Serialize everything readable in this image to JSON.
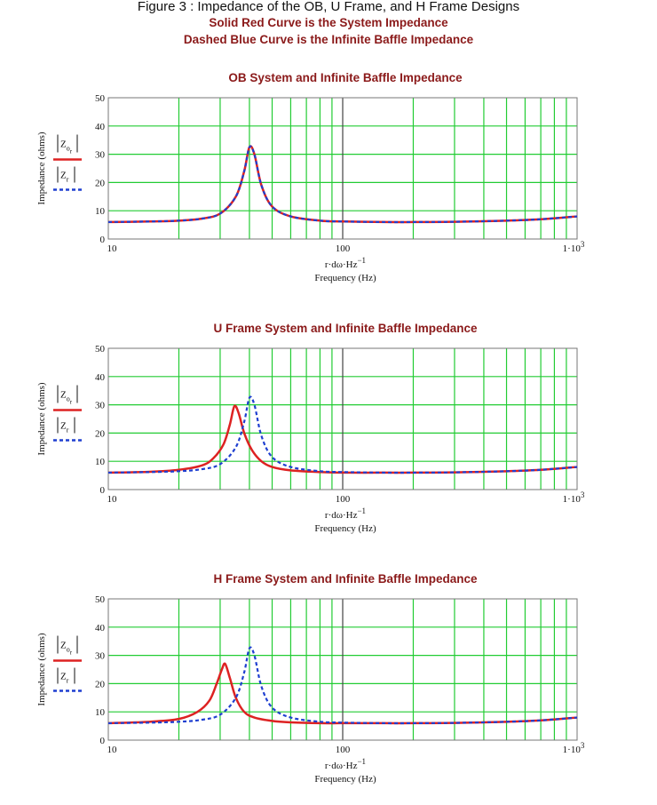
{
  "figure": {
    "title": "Figure 3 : Impedance of the OB, U Frame, and H Frame Designs",
    "subtitle_1": "Solid Red Curve is the System Impedance",
    "subtitle_2": "Dashed Blue Curve is the Infinite Baffle Impedance"
  },
  "colors": {
    "system": "#dd2222",
    "baffle": "#1f3fd0",
    "grid": "#22cc33",
    "frame": "#777777",
    "title": "#8b1a1a"
  },
  "chart_data": [
    {
      "type": "line",
      "title": "OB System and Infinite Baffle Impedance",
      "xlabel": "Frequency (Hz)",
      "xlabel_expr": "r·dω·Hz",
      "xlabel_exp": "−1",
      "ylabel": "Impedance (ohms)",
      "x_scale": "log",
      "xlim": [
        10,
        1000
      ],
      "ylim": [
        0,
        50
      ],
      "grid": true,
      "x_ticks": [
        "10",
        "100",
        "1·10"
      ],
      "x_tick_exp": "3",
      "y_ticks": [
        0,
        10,
        20,
        30,
        40,
        50
      ],
      "legend": {
        "placement": "left",
        "entries": [
          "|Zor|",
          "|Zr|"
        ]
      },
      "series": [
        {
          "style": "solid-red",
          "x": [
            10,
            15,
            20,
            25,
            30,
            35,
            38,
            40,
            42,
            45,
            50,
            60,
            80,
            100,
            150,
            200,
            300,
            500,
            700,
            1000
          ],
          "y": [
            6.0,
            6.2,
            6.5,
            7.2,
            9.0,
            15.0,
            24.0,
            32.5,
            30.0,
            19.0,
            11.5,
            8.0,
            6.5,
            6.2,
            6.0,
            6.0,
            6.1,
            6.5,
            7.0,
            8.0
          ]
        },
        {
          "style": "dashed-blue",
          "x": [
            10,
            15,
            20,
            25,
            30,
            35,
            38,
            40,
            42,
            45,
            50,
            60,
            80,
            100,
            150,
            200,
            300,
            500,
            700,
            1000
          ],
          "y": [
            6.0,
            6.2,
            6.5,
            7.2,
            9.0,
            15.0,
            24.0,
            32.5,
            30.0,
            19.0,
            11.5,
            8.0,
            6.5,
            6.2,
            6.0,
            6.0,
            6.1,
            6.5,
            7.0,
            8.0
          ]
        }
      ]
    },
    {
      "type": "line",
      "title": "U Frame System and Infinite Baffle Impedance",
      "xlabel": "Frequency (Hz)",
      "xlabel_expr": "r·dω·Hz",
      "xlabel_exp": "−1",
      "ylabel": "Impedance (ohms)",
      "x_scale": "log",
      "xlim": [
        10,
        1000
      ],
      "ylim": [
        0,
        50
      ],
      "grid": true,
      "x_ticks": [
        "10",
        "100",
        "1·10"
      ],
      "x_tick_exp": "3",
      "y_ticks": [
        0,
        10,
        20,
        30,
        40,
        50
      ],
      "legend": {
        "placement": "left",
        "entries": [
          "|Zor|",
          "|Zr|"
        ]
      },
      "series": [
        {
          "style": "solid-red",
          "x": [
            10,
            15,
            20,
            25,
            28,
            31,
            33,
            34.5,
            36,
            38,
            41,
            45,
            50,
            60,
            80,
            100,
            150,
            200,
            300,
            500,
            700,
            1000
          ],
          "y": [
            6.0,
            6.3,
            7.0,
            8.5,
            11.0,
            16.0,
            23.0,
            29.5,
            27.0,
            20.0,
            14.0,
            10.0,
            8.0,
            6.8,
            6.2,
            6.0,
            6.0,
            6.0,
            6.1,
            6.5,
            7.0,
            8.0
          ]
        },
        {
          "style": "dashed-blue",
          "x": [
            10,
            15,
            20,
            25,
            30,
            35,
            38,
            40,
            42,
            45,
            50,
            60,
            80,
            100,
            150,
            200,
            300,
            500,
            700,
            1000
          ],
          "y": [
            6.0,
            6.2,
            6.5,
            7.2,
            9.0,
            15.0,
            24.0,
            32.5,
            30.0,
            19.0,
            11.5,
            8.0,
            6.5,
            6.2,
            6.0,
            6.0,
            6.1,
            6.5,
            7.0,
            8.0
          ]
        }
      ]
    },
    {
      "type": "line",
      "title": "H Frame System and Infinite Baffle Impedance",
      "xlabel": "Frequency (Hz)",
      "xlabel_expr": "r·dω·Hz",
      "xlabel_exp": "−1",
      "ylabel": "Impedance (ohms)",
      "x_scale": "log",
      "xlim": [
        10,
        1000
      ],
      "ylim": [
        0,
        50
      ],
      "grid": true,
      "x_ticks": [
        "10",
        "100",
        "1·10"
      ],
      "x_tick_exp": "3",
      "y_ticks": [
        0,
        10,
        20,
        30,
        40,
        50
      ],
      "legend": {
        "placement": "left",
        "entries": [
          "|Zor|",
          "|Zr|"
        ]
      },
      "series": [
        {
          "style": "solid-red",
          "x": [
            10,
            15,
            20,
            24,
            27,
            29,
            30.5,
            31.5,
            33,
            35,
            38,
            42,
            50,
            60,
            80,
            100,
            150,
            200,
            300,
            500,
            700,
            1000
          ],
          "y": [
            6.0,
            6.5,
            7.5,
            10.0,
            14.0,
            20.0,
            25.0,
            27.0,
            22.0,
            15.0,
            10.0,
            8.0,
            6.8,
            6.3,
            6.0,
            6.0,
            6.0,
            6.0,
            6.1,
            6.5,
            7.0,
            8.0
          ]
        },
        {
          "style": "dashed-blue",
          "x": [
            10,
            15,
            20,
            25,
            30,
            35,
            38,
            40,
            42,
            45,
            50,
            60,
            80,
            100,
            150,
            200,
            300,
            500,
            700,
            1000
          ],
          "y": [
            6.0,
            6.2,
            6.5,
            7.2,
            9.0,
            15.0,
            24.0,
            32.5,
            30.0,
            19.0,
            11.5,
            8.0,
            6.5,
            6.2,
            6.0,
            6.0,
            6.1,
            6.5,
            7.0,
            8.0
          ]
        }
      ]
    }
  ]
}
